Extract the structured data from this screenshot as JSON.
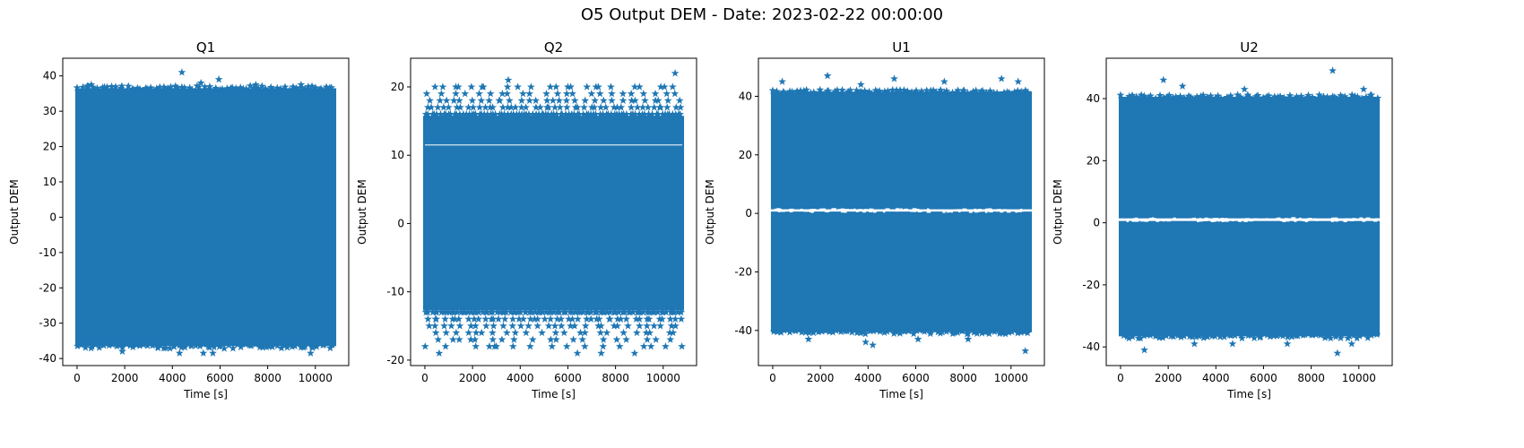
{
  "figure": {
    "suptitle": "O5 Output DEM - Date: 2023-02-22 00:00:00",
    "marker": "star",
    "series_color": "#1f77b4"
  },
  "chart_data": [
    {
      "type": "scatter",
      "title": "Q1",
      "xlabel": "Time [s]",
      "ylabel": "Output DEM",
      "xlim": [
        -600,
        11400
      ],
      "ylim": [
        -42,
        45
      ],
      "xticks": [
        0,
        2000,
        4000,
        6000,
        8000,
        10000
      ],
      "yticks": [
        -40,
        -30,
        -20,
        -10,
        0,
        10,
        20,
        30,
        40
      ],
      "x_range": [
        0,
        10800
      ],
      "dense_band": [
        [
          -36,
          36
        ]
      ],
      "band_edge": {
        "low": -36,
        "high": 36
      },
      "outliers": [
        [
          600,
          37.5
        ],
        [
          4400,
          41
        ],
        [
          5200,
          38
        ],
        [
          5950,
          39
        ],
        [
          7500,
          37.5
        ],
        [
          9400,
          37.5
        ],
        [
          1900,
          -38
        ],
        [
          4300,
          -38.5
        ],
        [
          5300,
          -38.5
        ],
        [
          5700,
          -38.5
        ],
        [
          9800,
          -38.5
        ],
        [
          3400,
          -37
        ]
      ],
      "grid": false,
      "legend": "none"
    },
    {
      "type": "scatter",
      "title": "Q2",
      "xlabel": "Time [s]",
      "ylabel": "Output DEM",
      "xlim": [
        -600,
        11400
      ],
      "ylim": [
        -20.8,
        24.2
      ],
      "xticks": [
        0,
        2000,
        4000,
        6000,
        8000,
        10000
      ],
      "yticks": [
        -20,
        -10,
        0,
        10,
        20
      ],
      "x_range": [
        0,
        10800
      ],
      "dense_band": [
        [
          -12.5,
          15.5
        ]
      ],
      "gaps": [
        11.5
      ],
      "sparse_levels": [
        -18,
        -17,
        -16,
        -15,
        -14,
        -13,
        16,
        17,
        18,
        19,
        20
      ],
      "outliers": [
        [
          1300,
          20
        ],
        [
          2400,
          20
        ],
        [
          3500,
          21
        ],
        [
          6000,
          20
        ],
        [
          6800,
          20
        ],
        [
          9900,
          20
        ],
        [
          10500,
          22
        ],
        [
          600,
          -19
        ],
        [
          2100,
          -17
        ],
        [
          3000,
          -18
        ],
        [
          6400,
          -19
        ],
        [
          7400,
          -19
        ],
        [
          8800,
          -19
        ],
        [
          10100,
          -18
        ]
      ],
      "grid": false,
      "legend": "none"
    },
    {
      "type": "scatter",
      "title": "U1",
      "xlabel": "Time [s]",
      "ylabel": "Output DEM",
      "xlim": [
        -600,
        11400
      ],
      "ylim": [
        -52,
        53
      ],
      "xticks": [
        0,
        2000,
        4000,
        6000,
        8000,
        10000
      ],
      "yticks": [
        -40,
        -20,
        0,
        20,
        40
      ],
      "x_range": [
        0,
        10800
      ],
      "dense_band": [
        [
          -40,
          0
        ],
        [
          2,
          41
        ]
      ],
      "band_edge": {
        "low": -40,
        "high": 41
      },
      "outliers": [
        [
          400,
          45
        ],
        [
          2300,
          47
        ],
        [
          3700,
          44
        ],
        [
          5100,
          46
        ],
        [
          7200,
          45
        ],
        [
          9600,
          46
        ],
        [
          10300,
          45
        ],
        [
          1500,
          -43
        ],
        [
          3900,
          -44
        ],
        [
          4200,
          -45
        ],
        [
          6100,
          -43
        ],
        [
          8200,
          -43
        ],
        [
          10600,
          -47
        ]
      ],
      "grid": false,
      "legend": "none"
    },
    {
      "type": "scatter",
      "title": "U2",
      "xlabel": "Time [s]",
      "ylabel": "Output DEM",
      "xlim": [
        -600,
        11400
      ],
      "ylim": [
        -46,
        53
      ],
      "xticks": [
        0,
        2000,
        4000,
        6000,
        8000,
        10000
      ],
      "yticks": [
        -40,
        -20,
        0,
        20,
        40
      ],
      "x_range": [
        0,
        10800
      ],
      "dense_band": [
        [
          -36,
          0
        ],
        [
          2,
          40
        ]
      ],
      "band_edge": {
        "low": -36,
        "high": 40
      },
      "outliers": [
        [
          1800,
          46
        ],
        [
          2600,
          44
        ],
        [
          5200,
          43
        ],
        [
          8900,
          49
        ],
        [
          10200,
          43
        ],
        [
          1000,
          -41
        ],
        [
          3100,
          -39
        ],
        [
          4700,
          -39
        ],
        [
          7000,
          -39
        ],
        [
          9100,
          -42
        ],
        [
          9700,
          -39
        ]
      ],
      "grid": false,
      "legend": "none"
    }
  ]
}
